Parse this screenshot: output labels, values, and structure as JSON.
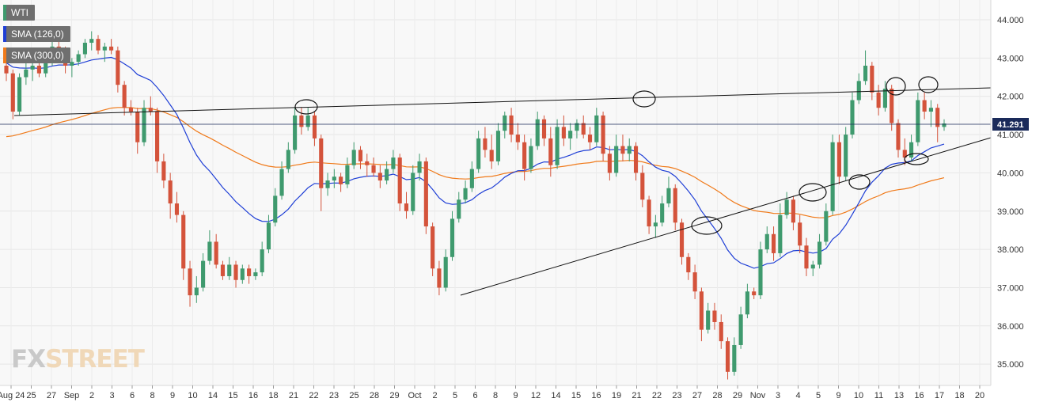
{
  "legend": {
    "symbol": "WTI",
    "sma1": "SMA (126,0)",
    "sma2": "SMA (300,0)",
    "symbol_color": "#3f9a6e",
    "sma1_color": "#1f3fd6",
    "sma2_color": "#f07a1a"
  },
  "watermark": {
    "part1": "FX",
    "part2": "STREET"
  },
  "chart_data": {
    "type": "candlestick",
    "title": "WTI",
    "ylim": [
      34.4,
      44.6
    ],
    "y_ticks": [
      "44.000",
      "43.000",
      "42.000",
      "41.000",
      "40.000",
      "39.000",
      "38.000",
      "37.000",
      "36.000",
      "35.000"
    ],
    "x_ticks": [
      "Aug 24",
      "25",
      "27",
      "Sep",
      "2",
      "3",
      "6",
      "8",
      "9",
      "10",
      "14",
      "15",
      "16",
      "18",
      "21",
      "22",
      "23",
      "25",
      "28",
      "29",
      "Oct",
      "2",
      "5",
      "6",
      "8",
      "9",
      "12",
      "14",
      "15",
      "16",
      "19",
      "21",
      "22",
      "23",
      "27",
      "28",
      "29",
      "Nov",
      "3",
      "4",
      "5",
      "9",
      "10",
      "11",
      "13",
      "16",
      "17",
      "18",
      "20"
    ],
    "last_price": "41.291",
    "last_price_value": 41.291,
    "colors": {
      "up": "#3f9a6e",
      "down": "#d4533b",
      "sma_short": "#1f3fd6",
      "sma_long": "#f07a1a",
      "price_tag": "#1a2a5a"
    },
    "candles": [
      [
        42.8,
        43.1,
        42.4,
        42.6
      ],
      [
        42.6,
        42.7,
        41.4,
        41.6
      ],
      [
        41.6,
        42.6,
        41.5,
        42.5
      ],
      [
        42.5,
        42.9,
        42.3,
        42.7
      ],
      [
        42.7,
        43.0,
        42.4,
        42.8
      ],
      [
        42.8,
        42.9,
        42.5,
        42.6
      ],
      [
        42.6,
        43.0,
        42.5,
        42.9
      ],
      [
        42.9,
        43.5,
        42.8,
        43.3
      ],
      [
        43.3,
        43.5,
        43.0,
        43.1
      ],
      [
        43.1,
        43.3,
        42.6,
        42.8
      ],
      [
        42.8,
        43.0,
        42.5,
        42.9
      ],
      [
        42.9,
        43.2,
        42.8,
        43.1
      ],
      [
        43.1,
        43.5,
        43.0,
        43.4
      ],
      [
        43.4,
        43.7,
        43.2,
        43.5
      ],
      [
        43.5,
        43.6,
        43.1,
        43.2
      ],
      [
        43.2,
        43.4,
        42.9,
        43.3
      ],
      [
        43.3,
        43.5,
        43.1,
        43.2
      ],
      [
        43.2,
        43.3,
        42.1,
        42.3
      ],
      [
        42.3,
        42.4,
        41.5,
        41.7
      ],
      [
        41.7,
        41.9,
        41.5,
        41.6
      ],
      [
        41.6,
        41.7,
        40.5,
        40.8
      ],
      [
        40.8,
        41.9,
        40.7,
        41.7
      ],
      [
        41.7,
        42.0,
        41.5,
        41.6
      ],
      [
        41.6,
        41.7,
        40.0,
        40.3
      ],
      [
        40.3,
        40.5,
        39.6,
        39.8
      ],
      [
        39.8,
        40.0,
        38.8,
        39.2
      ],
      [
        39.2,
        39.5,
        38.7,
        38.9
      ],
      [
        38.9,
        39.0,
        37.2,
        37.5
      ],
      [
        37.5,
        37.7,
        36.5,
        36.8
      ],
      [
        36.8,
        37.3,
        36.6,
        37.0
      ],
      [
        37.0,
        37.9,
        36.9,
        37.7
      ],
      [
        37.7,
        38.5,
        37.6,
        38.2
      ],
      [
        38.2,
        38.4,
        37.5,
        37.6
      ],
      [
        37.6,
        37.7,
        37.2,
        37.3
      ],
      [
        37.3,
        37.8,
        37.2,
        37.6
      ],
      [
        37.6,
        37.7,
        37.0,
        37.2
      ],
      [
        37.2,
        37.6,
        37.1,
        37.5
      ],
      [
        37.5,
        37.6,
        37.1,
        37.3
      ],
      [
        37.3,
        37.5,
        37.2,
        37.4
      ],
      [
        37.4,
        38.2,
        37.3,
        38.0
      ],
      [
        38.0,
        38.9,
        37.9,
        38.7
      ],
      [
        38.7,
        39.6,
        38.6,
        39.4
      ],
      [
        39.4,
        40.3,
        39.3,
        40.1
      ],
      [
        40.1,
        40.8,
        40.0,
        40.6
      ],
      [
        40.6,
        41.7,
        40.5,
        41.5
      ],
      [
        41.5,
        41.7,
        41.0,
        41.2
      ],
      [
        41.2,
        41.7,
        41.1,
        41.5
      ],
      [
        41.5,
        41.6,
        40.7,
        40.9
      ],
      [
        40.9,
        41.0,
        39.0,
        39.6
      ],
      [
        39.6,
        40.0,
        39.4,
        39.8
      ],
      [
        39.8,
        40.1,
        39.6,
        39.9
      ],
      [
        39.9,
        40.0,
        39.5,
        39.7
      ],
      [
        39.7,
        40.4,
        39.6,
        40.2
      ],
      [
        40.2,
        40.8,
        40.1,
        40.6
      ],
      [
        40.6,
        40.7,
        40.1,
        40.3
      ],
      [
        40.3,
        40.5,
        39.9,
        40.2
      ],
      [
        40.2,
        40.4,
        39.9,
        40.0
      ],
      [
        40.0,
        40.2,
        39.6,
        39.8
      ],
      [
        39.8,
        40.3,
        39.7,
        40.1
      ],
      [
        40.1,
        40.6,
        40.0,
        40.4
      ],
      [
        40.4,
        40.5,
        39.0,
        39.2
      ],
      [
        39.2,
        39.5,
        38.8,
        39.0
      ],
      [
        39.0,
        40.2,
        38.9,
        40.0
      ],
      [
        40.0,
        40.5,
        39.8,
        40.3
      ],
      [
        40.3,
        40.4,
        38.4,
        38.6
      ],
      [
        38.6,
        38.7,
        37.3,
        37.5
      ],
      [
        37.5,
        37.7,
        36.8,
        37.0
      ],
      [
        37.0,
        38.0,
        36.9,
        37.8
      ],
      [
        37.8,
        39.0,
        37.7,
        38.8
      ],
      [
        38.8,
        39.5,
        38.7,
        39.3
      ],
      [
        39.3,
        39.8,
        39.2,
        39.6
      ],
      [
        39.6,
        40.3,
        39.5,
        40.1
      ],
      [
        40.1,
        41.1,
        40.0,
        40.9
      ],
      [
        40.9,
        41.2,
        40.4,
        40.6
      ],
      [
        40.6,
        41.0,
        40.1,
        40.3
      ],
      [
        40.3,
        41.3,
        40.2,
        41.1
      ],
      [
        41.1,
        41.6,
        40.9,
        41.5
      ],
      [
        41.5,
        41.7,
        40.8,
        41.0
      ],
      [
        41.0,
        41.3,
        40.6,
        40.8
      ],
      [
        40.8,
        41.0,
        39.8,
        40.1
      ],
      [
        40.1,
        40.9,
        40.0,
        40.7
      ],
      [
        40.7,
        41.6,
        40.6,
        41.4
      ],
      [
        41.4,
        41.5,
        40.7,
        40.9
      ],
      [
        40.9,
        41.2,
        39.9,
        40.2
      ],
      [
        40.2,
        41.4,
        40.1,
        41.2
      ],
      [
        41.2,
        41.5,
        40.7,
        40.9
      ],
      [
        40.9,
        41.3,
        40.6,
        41.1
      ],
      [
        41.1,
        41.4,
        40.9,
        41.3
      ],
      [
        41.3,
        41.5,
        40.9,
        41.0
      ],
      [
        41.0,
        41.2,
        40.6,
        40.8
      ],
      [
        40.8,
        41.7,
        40.7,
        41.5
      ],
      [
        41.5,
        41.6,
        40.3,
        40.5
      ],
      [
        40.5,
        40.7,
        39.8,
        40.0
      ],
      [
        40.0,
        41.0,
        39.9,
        40.7
      ],
      [
        40.7,
        41.0,
        40.3,
        40.5
      ],
      [
        40.5,
        40.9,
        40.3,
        40.7
      ],
      [
        40.7,
        40.8,
        39.8,
        40.0
      ],
      [
        40.0,
        40.2,
        39.1,
        39.3
      ],
      [
        39.3,
        39.4,
        38.4,
        38.6
      ],
      [
        38.6,
        38.9,
        38.3,
        38.7
      ],
      [
        38.7,
        39.4,
        38.6,
        39.2
      ],
      [
        39.2,
        39.9,
        39.1,
        39.6
      ],
      [
        39.6,
        39.7,
        38.5,
        38.7
      ],
      [
        38.7,
        38.8,
        37.6,
        37.8
      ],
      [
        37.8,
        37.9,
        37.2,
        37.4
      ],
      [
        37.4,
        37.6,
        36.7,
        36.9
      ],
      [
        36.9,
        37.0,
        35.6,
        35.9
      ],
      [
        35.9,
        36.6,
        35.8,
        36.4
      ],
      [
        36.4,
        36.6,
        35.9,
        36.1
      ],
      [
        36.1,
        36.3,
        35.4,
        35.6
      ],
      [
        35.6,
        35.7,
        34.6,
        34.8
      ],
      [
        34.8,
        35.7,
        34.7,
        35.5
      ],
      [
        35.5,
        36.5,
        35.4,
        36.3
      ],
      [
        36.3,
        37.1,
        36.2,
        36.9
      ],
      [
        36.9,
        37.0,
        36.7,
        36.8
      ],
      [
        36.8,
        38.2,
        36.7,
        38.0
      ],
      [
        38.0,
        38.6,
        37.9,
        38.4
      ],
      [
        38.4,
        38.6,
        37.7,
        37.9
      ],
      [
        37.9,
        39.2,
        37.8,
        38.9
      ],
      [
        38.9,
        39.5,
        38.8,
        39.3
      ],
      [
        39.3,
        39.4,
        38.5,
        38.7
      ],
      [
        38.7,
        38.9,
        37.9,
        38.1
      ],
      [
        38.1,
        38.3,
        37.3,
        37.5
      ],
      [
        37.5,
        37.7,
        37.3,
        37.6
      ],
      [
        37.6,
        38.4,
        37.5,
        38.2
      ],
      [
        38.2,
        39.2,
        38.1,
        39.0
      ],
      [
        39.0,
        41.0,
        38.9,
        40.8
      ],
      [
        40.8,
        41.0,
        39.7,
        39.9
      ],
      [
        39.9,
        41.2,
        39.8,
        41.0
      ],
      [
        41.0,
        42.1,
        40.9,
        41.9
      ],
      [
        41.9,
        42.6,
        41.8,
        42.4
      ],
      [
        42.4,
        43.2,
        42.3,
        42.8
      ],
      [
        42.8,
        42.9,
        41.9,
        42.1
      ],
      [
        42.1,
        42.3,
        41.5,
        41.7
      ],
      [
        41.7,
        42.4,
        41.6,
        42.2
      ],
      [
        42.2,
        42.3,
        41.1,
        41.3
      ],
      [
        41.3,
        41.4,
        40.4,
        40.6
      ],
      [
        40.6,
        40.9,
        40.2,
        40.4
      ],
      [
        40.4,
        41.0,
        40.3,
        40.8
      ],
      [
        40.8,
        42.1,
        40.7,
        41.9
      ],
      [
        41.9,
        42.1,
        41.4,
        41.6
      ],
      [
        41.6,
        41.9,
        41.2,
        41.7
      ],
      [
        41.7,
        41.8,
        40.8,
        41.2
      ],
      [
        41.2,
        41.4,
        41.1,
        41.29
      ]
    ]
  }
}
